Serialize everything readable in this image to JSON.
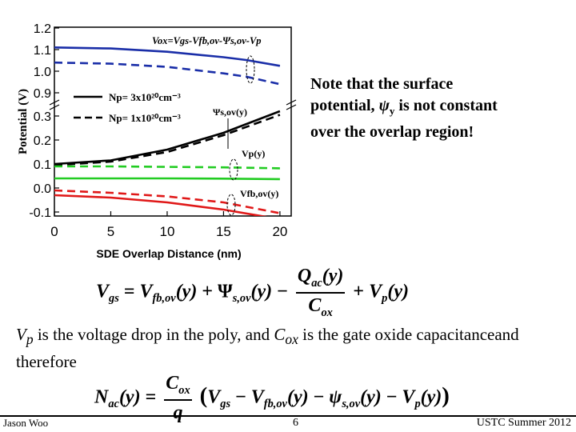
{
  "note": {
    "line1": "Note that the surface",
    "line2_a": "potential, ",
    "line2_psi": "ψ",
    "line2_sub": "y",
    "line2_b": " is not constant",
    "line3": "over the overlap region!"
  },
  "eq1": {
    "lhs": "V",
    "lhs_sub": "gs",
    "eq": "=",
    "t1": "V",
    "t1_sub": "fb,ov",
    "t1_arg": "(y)",
    "plus1": "+",
    "t2": "Ψ",
    "t2_sub": "s,ov",
    "t2_arg": "(y)",
    "minus": "−",
    "num": "Q",
    "num_sub": "ac",
    "num_arg": "(y)",
    "den": "C",
    "den_sub": "ox",
    "plus2": "+",
    "t4": "V",
    "t4_sub": "p",
    "t4_arg": "(y)"
  },
  "body": {
    "v": "V",
    "v_sub": "p",
    "text1": " is the voltage drop in the poly, and ",
    "c": "C",
    "c_sub": "ox",
    "text2": " is the gate oxide capacitanceand therefore"
  },
  "eq2": {
    "lhs": "N",
    "lhs_sub": "ac",
    "lhs_arg": "(y)",
    "eq": "=",
    "num": "C",
    "num_sub": "ox",
    "den": "q",
    "open": "(",
    "a": "V",
    "a_sub": "gs",
    "m1": "−",
    "b": "V",
    "b_sub": "fb,ov",
    "b_arg": "(y)",
    "m2": "−",
    "c": "ψ",
    "c_sub": "s,ov",
    "c_arg": "(y)",
    "m3": "−",
    "d": "V",
    "d_sub": "p",
    "d_arg": "(y)",
    "close": ")"
  },
  "footer": {
    "author": "Jason Woo",
    "page": "6",
    "course": "USTC Summer 2012"
  },
  "chart_data": {
    "type": "line",
    "xlabel": "SDE Overlap Distance (nm)",
    "ylabel": "Potential (V)",
    "xlim": [
      0,
      21
    ],
    "x_ticks": [
      "0",
      "5",
      "10",
      "15",
      "20"
    ],
    "y_ticks_upper": [
      "1.2",
      "1.1",
      "1.0",
      "0.9"
    ],
    "y_ticks_lower": [
      "0.3",
      "0.2",
      "0.1",
      "0.0",
      "-0.1"
    ],
    "broken_axis": true,
    "formula_label": "Vox=Vgs-Vfb,ov-Ψs,ov-Vp",
    "legend": [
      {
        "label": "Np= 3x10²⁰cm⁻³",
        "style": "solid"
      },
      {
        "label": "Np= 1x10²⁰cm⁻³",
        "style": "dashed"
      }
    ],
    "annotations": [
      "Ψs,ov(y)",
      "Vp(y)",
      "Vfb,ov(y)"
    ],
    "colors": {
      "vox": "#1a2ea8",
      "psi": "#000000",
      "vp": "#22cc22",
      "vfb": "#e01818"
    },
    "series": [
      {
        "curve": "vox",
        "style": "solid",
        "x": [
          0,
          5,
          10,
          15,
          17,
          20
        ],
        "y": [
          1.11,
          1.105,
          1.09,
          1.065,
          1.052,
          1.025
        ]
      },
      {
        "curve": "vox",
        "style": "dashed",
        "x": [
          0,
          5,
          10,
          15,
          17,
          20
        ],
        "y": [
          1.04,
          1.035,
          1.02,
          0.99,
          0.975,
          0.94
        ]
      },
      {
        "curve": "psi",
        "style": "solid",
        "x": [
          0,
          5,
          10,
          15,
          20
        ],
        "y": [
          0.1,
          0.115,
          0.16,
          0.23,
          0.32
        ]
      },
      {
        "curve": "psi",
        "style": "dashed",
        "x": [
          0,
          5,
          10,
          15,
          20
        ],
        "y": [
          0.095,
          0.11,
          0.15,
          0.22,
          0.305
        ]
      },
      {
        "curve": "vp",
        "style": "solid",
        "x": [
          0,
          5,
          10,
          15,
          20
        ],
        "y": [
          0.04,
          0.04,
          0.04,
          0.039,
          0.037
        ]
      },
      {
        "curve": "vp",
        "style": "dashed",
        "x": [
          0,
          5,
          10,
          15,
          20
        ],
        "y": [
          0.09,
          0.09,
          0.088,
          0.086,
          0.082
        ]
      },
      {
        "curve": "vfb",
        "style": "solid",
        "x": [
          0,
          5,
          10,
          15,
          20
        ],
        "y": [
          -0.03,
          -0.04,
          -0.06,
          -0.09,
          -0.13
        ]
      },
      {
        "curve": "vfb",
        "style": "dashed",
        "x": [
          0,
          5,
          10,
          15,
          20
        ],
        "y": [
          -0.01,
          -0.02,
          -0.035,
          -0.06,
          -0.105
        ]
      }
    ]
  }
}
